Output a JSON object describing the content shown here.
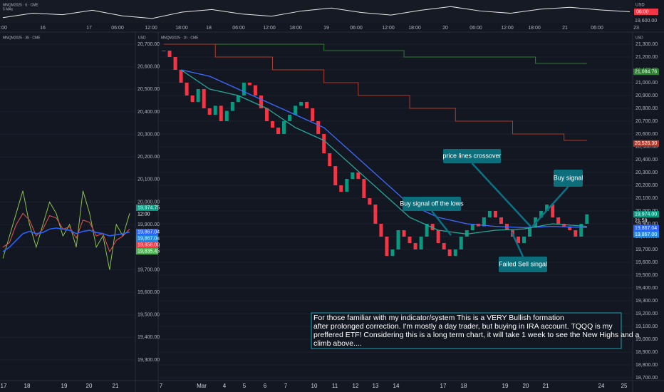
{
  "header": {
    "symbol_top": "MNQM2025 · 6 · CME",
    "indicator_top": "5 MAs",
    "currency_top": "USD",
    "tag_top": "06:00",
    "price_top": "19,600.00"
  },
  "top_axis": [
    ":00",
    "16",
    "17",
    "06:00",
    "12:00",
    "18:00",
    "18",
    "06:00",
    "12:00",
    "18:00",
    "19",
    "06:00",
    "12:00",
    "18:00",
    "20",
    "06:00",
    "12:00",
    "18:00",
    "21",
    "06:00",
    "23"
  ],
  "top_series": {
    "values": [
      40,
      52,
      48,
      60,
      45,
      38,
      55,
      62,
      50,
      44,
      58,
      66,
      54,
      47,
      60,
      70,
      58,
      52,
      63,
      68,
      61,
      56
    ],
    "ylim": [
      30,
      80
    ],
    "color": "#e8e8e8"
  },
  "left_chart": {
    "type": "line",
    "symbol": "MNQM2025 · 36 · CME",
    "currency": "USD",
    "ylim": [
      19300,
      20700
    ],
    "yticks": [
      {
        "value": 20700,
        "label": "20,700.00"
      },
      {
        "value": 20600,
        "label": "20,600.00"
      },
      {
        "value": 20500,
        "label": "20,500.00"
      },
      {
        "value": 20400,
        "label": "20,400.00"
      },
      {
        "value": 20300,
        "label": "20,300.00"
      },
      {
        "value": 20200,
        "label": "20,200.00"
      },
      {
        "value": 20100,
        "label": "20,100.00"
      },
      {
        "value": 20000,
        "label": "20,000.00"
      },
      {
        "value": 19900,
        "label": "19,900.00"
      },
      {
        "value": 19800,
        "label": "19,800.00"
      },
      {
        "value": 19700,
        "label": "19,700.00"
      },
      {
        "value": 19600,
        "label": "19,600.00"
      },
      {
        "value": 19500,
        "label": "19,500.00"
      },
      {
        "value": 19400,
        "label": "19,400.00"
      },
      {
        "value": 19300,
        "label": "19,300.00"
      }
    ],
    "categories": [
      "17",
      "18",
      "19",
      "20",
      "21"
    ],
    "series": [
      {
        "color": "#8bc34a",
        "values": [
          19750,
          19850,
          19950,
          20050,
          19900,
          19800,
          19900,
          20000,
          19950,
          19850,
          19900,
          19800,
          20050,
          19950,
          19800,
          19850,
          19700,
          19900,
          19850,
          19950
        ]
      },
      {
        "color": "#ef5350",
        "values": [
          19800,
          19820,
          19900,
          19950,
          19920,
          19850,
          19880,
          19940,
          19930,
          19880,
          19890,
          19840,
          19920,
          19910,
          19850,
          19860,
          19780,
          19830,
          19850,
          19880
        ]
      },
      {
        "color": "#2962ff",
        "values": [
          19780,
          19800,
          19830,
          19860,
          19870,
          19860,
          19865,
          19880,
          19885,
          19880,
          19875,
          19860,
          19870,
          19875,
          19865,
          19860,
          19850,
          19855,
          19860,
          19867
        ]
      }
    ],
    "tags": [
      {
        "value": 19974.75,
        "label": "19,974.75",
        "color": "#089981"
      },
      {
        "value": 19867.04,
        "label": "19,867.04",
        "color": "#2962ff"
      },
      {
        "value": 19867.04,
        "label": "19,867.04",
        "color": "#1e88e5"
      },
      {
        "value": 19858.0,
        "label": "19,858.00",
        "color": "#f23645"
      },
      {
        "value": 19835.43,
        "label": "19,835.43",
        "color": "#4caf50"
      }
    ],
    "countdown": "12:00"
  },
  "main_chart": {
    "type": "candlestick",
    "symbol": "MNQM2025 · 1h · CME",
    "currency": "USD",
    "ylim": [
      18700,
      21300
    ],
    "xlim": [
      -1,
      82
    ],
    "yticks": [
      {
        "value": 21300,
        "label": "21,300.00"
      },
      {
        "value": 21200,
        "label": "21,200.00"
      },
      {
        "value": 21100,
        "label": "21,100.00"
      },
      {
        "value": 21000,
        "label": "21,000.00"
      },
      {
        "value": 20900,
        "label": "20,900.00"
      },
      {
        "value": 20800,
        "label": "20,800.00"
      },
      {
        "value": 20700,
        "label": "20,700.00"
      },
      {
        "value": 20600,
        "label": "20,600.00"
      },
      {
        "value": 20500,
        "label": "20,500.00"
      },
      {
        "value": 20400,
        "label": "20,400.00"
      },
      {
        "value": 20300,
        "label": "20,300.00"
      },
      {
        "value": 20200,
        "label": "20,200.00"
      },
      {
        "value": 20100,
        "label": "20,100.00"
      },
      {
        "value": 20000,
        "label": "20,000.00"
      },
      {
        "value": 19900,
        "label": "19,900.00"
      },
      {
        "value": 19800,
        "label": "19,800.00"
      },
      {
        "value": 19700,
        "label": "19,700.00"
      },
      {
        "value": 19600,
        "label": "19,600.00"
      },
      {
        "value": 19500,
        "label": "19,500.00"
      },
      {
        "value": 19400,
        "label": "19,400.00"
      },
      {
        "value": 19300,
        "label": "19,300.00"
      },
      {
        "value": 19200,
        "label": "19,200.00"
      },
      {
        "value": 19100,
        "label": "19,100.00"
      },
      {
        "value": 19000,
        "label": "19,000.00"
      },
      {
        "value": 18900,
        "label": "18,900.00"
      },
      {
        "value": 18800,
        "label": "18,800.00"
      },
      {
        "value": 18700,
        "label": "18,700.00"
      }
    ],
    "categories": [
      "7",
      "Mar",
      "4",
      "5",
      "6",
      "7",
      "10",
      "11",
      "12",
      "13",
      "14",
      "17",
      "18",
      "19",
      "20",
      "21",
      "24",
      "25"
    ],
    "close": [
      21250,
      21200,
      21100,
      21000,
      20900,
      20850,
      20950,
      20800,
      20750,
      20820,
      20700,
      20780,
      20850,
      20900,
      21000,
      20980,
      20900,
      20800,
      20700,
      20650,
      20600,
      20700,
      20750,
      20820,
      20850,
      20800,
      20700,
      20600,
      20450,
      20350,
      20200,
      20150,
      20250,
      20300,
      20250,
      20100,
      20050,
      19900,
      19800,
      19650,
      19700,
      19850,
      19800,
      19750,
      19700,
      19800,
      19900,
      19850,
      19750,
      19700,
      19650,
      19700,
      19800,
      19850,
      19900,
      19880,
      19950,
      20000,
      19950,
      19900,
      19850,
      19800,
      19750,
      19800,
      19870,
      19950,
      20000,
      20050,
      19950,
      19900,
      19880,
      19850,
      19800,
      19900,
      19974
    ],
    "up_color": "#089981",
    "down_color": "#f23645",
    "lines": [
      {
        "color": "#3d6bff",
        "x": [
          3,
          8,
          13,
          18,
          23,
          28,
          33,
          38,
          43,
          48,
          53,
          58,
          63,
          68,
          74
        ],
        "values": [
          21100,
          21050,
          20950,
          20850,
          20750,
          20650,
          20450,
          20250,
          20050,
          19950,
          19900,
          19880,
          19870,
          19880,
          19870
        ]
      },
      {
        "color": "#26a69a",
        "x": [
          3,
          8,
          13,
          18,
          23,
          28,
          33,
          38,
          43,
          48,
          53,
          58,
          63,
          68,
          74
        ],
        "values": [
          21100,
          20950,
          20900,
          20800,
          20650,
          20550,
          20350,
          20150,
          19950,
          19850,
          19820,
          19850,
          19860,
          19900,
          19880
        ]
      }
    ],
    "steps": [
      {
        "color": "#2e7d32",
        "x": [
          0,
          28,
          42,
          65,
          74
        ],
        "values": [
          21300,
          21250,
          21200,
          21150,
          21150
        ]
      },
      {
        "color": "#b23a2a",
        "x": [
          0,
          9,
          19,
          28,
          34,
          43,
          51,
          61,
          70,
          74
        ],
        "values": [
          21300,
          21200,
          21100,
          21000,
          20900,
          20800,
          20700,
          20600,
          20550,
          20550
        ]
      }
    ],
    "tags": [
      {
        "value": 21084.76,
        "label": "21,084.76",
        "color": "#2e7d32"
      },
      {
        "value": 20526.3,
        "label": "20,526.30",
        "color": "#b23a2a"
      },
      {
        "value": 19974.0,
        "label": "19,974.00",
        "color": "#089981"
      },
      {
        "value": 19867.04,
        "label": "19,867.04",
        "color": "#2962ff"
      },
      {
        "value": 19867.0,
        "label": "19,867.00",
        "color": "#1e88e5"
      }
    ],
    "countdown": "21:59",
    "annotations": [
      "Buy signal off the lows",
      "price lines crossover",
      "Buy signal",
      "Failed Sell singal"
    ],
    "note": [
      "For those familiar with my indicator/system  This is a VERY Bullish formation",
      "after prolonged correction.  I'm mostly a day trader, but buying in IRA account.  TQQQ is my",
      "preffered ETF!  Considering this is a long term chart, it will take 1 week to see the New Highs and a",
      "climb above...."
    ]
  }
}
